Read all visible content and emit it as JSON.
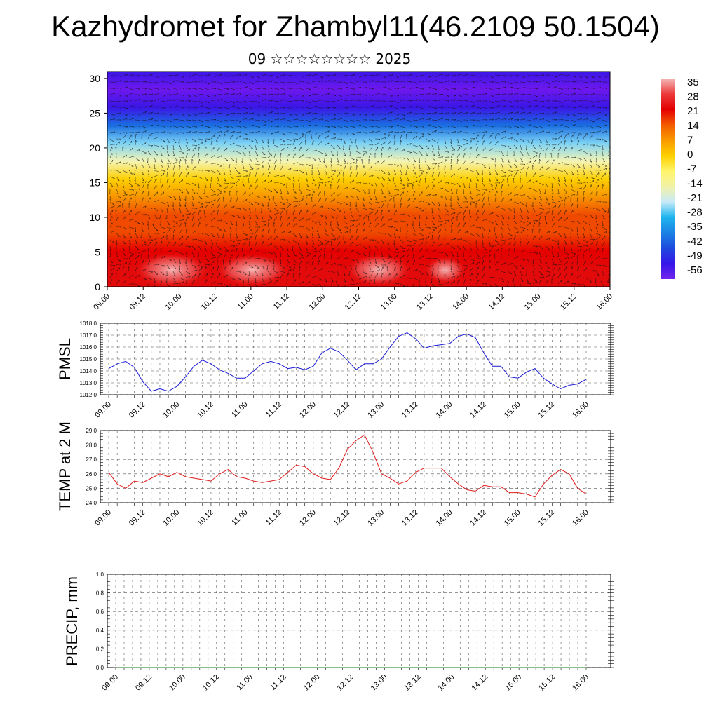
{
  "header": {
    "title": "Kazhydromet for Zhambyl11(46.2109 50.1504)",
    "subtitle": "09 ☆☆☆☆☆☆☆☆ 2025"
  },
  "colors": {
    "pmsl_line": "#1a1ad6",
    "temp_line": "#e01a1a",
    "precip_line": "#1a7a1a",
    "axis": "#000000",
    "grid": "#555555"
  },
  "chart_data": [
    {
      "type": "heatmap",
      "title": "",
      "x_ticks": [
        "09.00",
        "09.12",
        "10.00",
        "10.12",
        "11.00",
        "11.12",
        "12.00",
        "12.12",
        "13.00",
        "13.12",
        "14.00",
        "14.12",
        "15.00",
        "15.12",
        "16.00"
      ],
      "ylim": [
        0,
        31
      ],
      "y_ticks": [
        0,
        5,
        10,
        15,
        20,
        25,
        30
      ],
      "colorbar_labels": [
        "35",
        "28",
        "21",
        "14",
        "7",
        "0",
        "-7",
        "-14",
        "-21",
        "-28",
        "-35",
        "-42",
        "-49",
        "-56"
      ],
      "colorbar_colors": [
        "#f4b8b8",
        "#ec3a3a",
        "#e40000",
        "#f35b00",
        "#fa9a00",
        "#fdd000",
        "#fff46a",
        "#f2f2a8",
        "#c8eaf8",
        "#1eb4ee",
        "#1c82e6",
        "#1e4ade",
        "#3416e8",
        "#7424ee"
      ],
      "vertical_profile_level_values": [
        34,
        30,
        25,
        20,
        14,
        6,
        -2,
        -12,
        -25,
        -40,
        -54,
        -57,
        -56
      ],
      "overlay": "wind vectors"
    },
    {
      "type": "line",
      "ylabel": "PMSL",
      "ylim": [
        1012.0,
        1018.0
      ],
      "y_ticks": [
        "1012.0",
        "1013.0",
        "1014.0",
        "1015.0",
        "1016.0",
        "1017.0",
        "1018.0"
      ],
      "x_ticks": [
        "09.00",
        "09.12",
        "10.00",
        "10.12",
        "11.00",
        "11.12",
        "12.00",
        "12.12",
        "13.00",
        "13.12",
        "14.00",
        "14.12",
        "15.00",
        "15.12",
        "16.00"
      ],
      "x_step_hours": 3,
      "series": [
        {
          "values": [
            1014.2,
            1014.6,
            1014.8,
            1014.3,
            1013.1,
            1012.3,
            1012.5,
            1012.3,
            1012.7,
            1013.5,
            1014.4,
            1014.9,
            1014.6,
            1014.1,
            1013.8,
            1013.4,
            1013.4,
            1014.0,
            1014.6,
            1014.8,
            1014.6,
            1014.2,
            1014.3,
            1014.1,
            1014.4,
            1015.5,
            1015.9,
            1015.6,
            1014.9,
            1014.1,
            1014.6,
            1014.6,
            1015.0,
            1016.0,
            1016.9,
            1017.2,
            1016.7,
            1015.9,
            1016.1,
            1016.2,
            1016.3,
            1016.9,
            1017.1,
            1016.8,
            1015.5,
            1014.4,
            1014.4,
            1013.5,
            1013.4,
            1013.9,
            1014.2,
            1013.4,
            1012.9,
            1012.5,
            1012.8,
            1012.9,
            1013.3
          ]
        }
      ]
    },
    {
      "type": "line",
      "ylabel": "TEMP at 2 M",
      "ylim": [
        24.0,
        29.0
      ],
      "y_ticks": [
        "24.0",
        "25.0",
        "26.0",
        "27.0",
        "28.0",
        "29.0"
      ],
      "x_ticks": [
        "09.00",
        "09.12",
        "10.00",
        "10.12",
        "11.00",
        "11.12",
        "12.00",
        "12.12",
        "13.00",
        "13.12",
        "14.00",
        "14.12",
        "15.00",
        "15.12",
        "16.00"
      ],
      "x_step_hours": 3,
      "series": [
        {
          "values": [
            26.1,
            25.3,
            25.0,
            25.5,
            25.4,
            25.7,
            26.0,
            25.8,
            26.1,
            25.8,
            25.7,
            25.6,
            25.5,
            26.0,
            26.3,
            25.8,
            25.7,
            25.5,
            25.4,
            25.5,
            25.6,
            26.1,
            26.6,
            26.5,
            26.0,
            25.7,
            25.6,
            26.4,
            27.7,
            28.3,
            28.7,
            27.5,
            26.0,
            25.7,
            25.3,
            25.5,
            26.1,
            26.4,
            26.4,
            26.4,
            25.8,
            25.3,
            24.9,
            24.8,
            25.2,
            25.1,
            25.1,
            24.7,
            24.7,
            24.6,
            24.4,
            25.3,
            25.9,
            26.3,
            26.0,
            25.0,
            24.6
          ]
        }
      ]
    },
    {
      "type": "line",
      "ylabel": "PRECIP, mm",
      "ylim": [
        0.0,
        1.0
      ],
      "y_ticks": [
        "0.0",
        "0.2",
        "0.4",
        "0.6",
        "0.8",
        "1.0"
      ],
      "x_ticks": [
        "09.00",
        "09.12",
        "10.00",
        "10.12",
        "11.00",
        "11.12",
        "12.00",
        "12.12",
        "13.00",
        "13.12",
        "14.00",
        "14.12",
        "15.00",
        "15.12",
        "16.00"
      ],
      "x_step_hours": 3,
      "series": [
        {
          "values": [
            0,
            0,
            0,
            0,
            0,
            0,
            0,
            0,
            0,
            0,
            0,
            0,
            0,
            0,
            0,
            0,
            0,
            0,
            0,
            0,
            0,
            0,
            0,
            0,
            0,
            0,
            0,
            0,
            0,
            0,
            0,
            0,
            0,
            0,
            0,
            0,
            0,
            0,
            0,
            0,
            0,
            0,
            0,
            0,
            0,
            0,
            0,
            0,
            0,
            0,
            0,
            0,
            0,
            0,
            0,
            0,
            0
          ]
        }
      ]
    }
  ]
}
